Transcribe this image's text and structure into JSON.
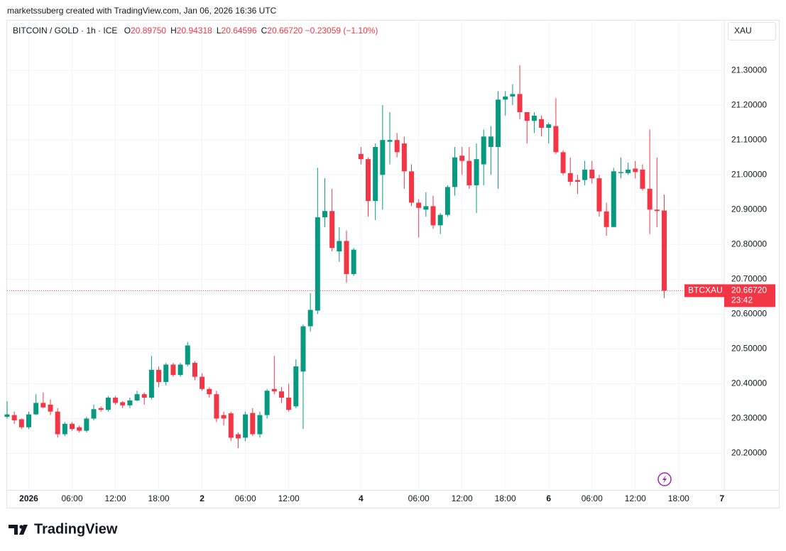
{
  "header": {
    "credit": "marketssuberg created with TradingView.com, Jan 06, 2026 16:36 UTC",
    "symbol": "BITCOIN / GOLD · 1h · ICE",
    "ohlc": [
      {
        "key": "O",
        "value": "20.89750"
      },
      {
        "key": "H",
        "value": "20.94318"
      },
      {
        "key": "L",
        "value": "20.64596"
      },
      {
        "key": "C",
        "value": "20.66720"
      }
    ],
    "change": "−0.23059 (−1.10%)",
    "currency": "XAU"
  },
  "chart_data": {
    "type": "candlestick",
    "categories": [
      null,
      null,
      null,
      "2026",
      null,
      null,
      null,
      null,
      null,
      "06:00",
      null,
      null,
      null,
      null,
      null,
      "12:00",
      null,
      null,
      null,
      null,
      null,
      "18:00",
      null,
      null,
      null,
      null,
      null,
      "2",
      null,
      null,
      null,
      null,
      null,
      "06:00",
      null,
      null,
      null,
      null,
      null,
      "12:00",
      null,
      null,
      null,
      null,
      null,
      null,
      null,
      null,
      null,
      "4",
      null,
      null,
      null,
      null,
      null,
      null,
      null,
      "06:00",
      null,
      null,
      null,
      null,
      null,
      "12:00",
      null,
      null,
      null,
      null,
      null,
      "18:00",
      null,
      null,
      null,
      null,
      null,
      "6",
      null,
      null,
      null,
      null,
      null,
      "06:00",
      null,
      null,
      null,
      null,
      null,
      "12:00",
      null,
      null,
      null,
      null,
      null,
      "18:00",
      null,
      null,
      null,
      null,
      null,
      "7"
    ],
    "open": [
      20.305,
      20.31,
      20.298,
      20.275,
      20.312,
      20.345,
      20.34,
      20.32,
      20.255,
      20.285,
      20.275,
      20.265,
      20.3,
      20.33,
      20.325,
      20.36,
      20.347,
      20.338,
      20.352,
      20.37,
      20.36,
      20.44,
      20.405,
      20.455,
      20.425,
      20.455,
      20.46,
      20.42,
      20.385,
      20.37,
      20.31,
      20.315,
      20.255,
      20.245,
      20.316,
      20.255,
      20.31,
      20.385,
      20.378,
      20.36,
      20.335,
      20.435,
      20.565,
      20.61,
      20.878,
      20.896,
      20.78,
      20.81,
      20.715,
      21.06,
      21.045,
      20.925,
      21.0,
      21.095,
      21.1,
      21.09,
      21.01,
      20.92,
      20.9,
      20.91,
      20.855,
      20.885,
      20.965,
      21.055,
      21.04,
      20.97,
      21.03,
      21.08,
      21.08,
      21.216,
      21.225,
      21.232,
      21.18,
      21.155,
      21.16,
      21.135,
      21.14,
      21.065,
      21.005,
      20.985,
      20.985,
      21.015,
      20.99,
      20.895,
      20.85,
      21.005,
      21.005,
      21.018,
      21.015,
      20.96,
      20.9,
      20.8975,
      null,
      null,
      null,
      null,
      null,
      null,
      null,
      null
    ],
    "high": [
      20.35,
      20.32,
      20.3,
      20.32,
      20.37,
      20.375,
      20.355,
      20.33,
      20.29,
      20.29,
      20.28,
      20.305,
      20.34,
      20.335,
      20.365,
      20.365,
      20.35,
      20.36,
      20.38,
      20.375,
      20.48,
      20.45,
      20.46,
      20.46,
      20.46,
      20.52,
      20.465,
      20.43,
      20.39,
      20.38,
      20.32,
      20.32,
      20.26,
      20.32,
      20.33,
      20.32,
      20.385,
      20.48,
      20.39,
      20.4,
      20.47,
      20.57,
      20.66,
      21.02,
      20.99,
      20.96,
      20.85,
      20.84,
      20.79,
      21.08,
      21.05,
      21.09,
      21.2,
      21.18,
      21.12,
      21.11,
      21.03,
      20.93,
      20.95,
      20.94,
      20.89,
      20.97,
      21.08,
      21.08,
      21.08,
      21.09,
      21.13,
      21.14,
      21.24,
      21.24,
      21.26,
      21.315,
      21.18,
      21.18,
      21.17,
      21.15,
      21.22,
      21.07,
      21.05,
      21.0,
      21.04,
      21.04,
      21.0,
      20.92,
      21.02,
      21.05,
      21.035,
      21.04,
      21.03,
      21.13,
      21.05,
      20.94318,
      null,
      null,
      null,
      null,
      null,
      null,
      null,
      null
    ],
    "low": [
      20.3,
      20.285,
      20.27,
      20.27,
      20.31,
      20.33,
      20.31,
      20.245,
      20.25,
      20.265,
      20.26,
      20.26,
      20.295,
      20.32,
      20.32,
      20.34,
      20.33,
      20.33,
      20.35,
      20.34,
      20.355,
      20.39,
      20.395,
      20.42,
      20.42,
      20.45,
      20.41,
      20.38,
      20.36,
      20.29,
      20.28,
      20.235,
      20.215,
      20.235,
      20.25,
      20.245,
      20.3,
      20.37,
      20.345,
      20.32,
      20.33,
      20.27,
      20.55,
      20.6,
      20.85,
      20.78,
      20.75,
      20.69,
      20.71,
      21.03,
      20.88,
      20.87,
      20.9,
      21.03,
      21.05,
      20.96,
      20.91,
      20.82,
      20.88,
      20.845,
      20.83,
      20.88,
      20.94,
      21.0,
      20.96,
      20.89,
      20.97,
      21.0,
      20.96,
      21.17,
      21.2,
      21.16,
      21.09,
      21.12,
      21.11,
      21.09,
      21.06,
      21.0,
      20.97,
      20.945,
      20.97,
      20.975,
      20.88,
      20.825,
      20.85,
      20.99,
      21.0,
      20.99,
      20.955,
      20.83,
      20.85,
      20.64596,
      null,
      null,
      null,
      null,
      null,
      null,
      null,
      null
    ],
    "close": [
      20.312,
      20.295,
      20.275,
      20.312,
      20.345,
      20.332,
      20.32,
      20.255,
      20.285,
      20.27,
      20.265,
      20.3,
      20.327,
      20.325,
      20.36,
      20.345,
      20.338,
      20.352,
      20.37,
      20.36,
      20.44,
      20.405,
      20.455,
      20.425,
      20.455,
      20.51,
      20.42,
      20.385,
      20.37,
      20.3,
      20.3,
      20.245,
      20.243,
      20.312,
      20.255,
      20.31,
      20.38,
      20.378,
      20.36,
      20.325,
      20.45,
      20.565,
      20.612,
      20.878,
      20.896,
      20.79,
      20.81,
      20.715,
      20.785,
      21.045,
      20.925,
      21.08,
      21.1,
      21.1,
      21.065,
      21.01,
      20.92,
      20.905,
      20.91,
      20.855,
      20.885,
      20.965,
      21.05,
      21.04,
      20.97,
      21.045,
      21.11,
      21.11,
      21.216,
      21.225,
      21.232,
      21.18,
      21.155,
      21.17,
      21.135,
      21.145,
      21.065,
      21.005,
      20.98,
      20.98,
      21.015,
      20.99,
      20.895,
      20.85,
      21.01,
      21.008,
      21.015,
      21.008,
      20.96,
      20.9,
      20.896,
      20.6672,
      null,
      null,
      null,
      null,
      null,
      null,
      null,
      null
    ],
    "up_color": "#089981",
    "down_color": "#f23645",
    "ylim": [
      20.095,
      21.445
    ],
    "yticks": [
      {
        "value": 20.2,
        "label": "20.20000"
      },
      {
        "value": 20.3,
        "label": "20.30000"
      },
      {
        "value": 20.4,
        "label": "20.40000"
      },
      {
        "value": 20.5,
        "label": "20.50000"
      },
      {
        "value": 20.6,
        "label": "20.60000"
      },
      {
        "value": 20.7,
        "label": "20.70000"
      },
      {
        "value": 20.8,
        "label": "20.80000"
      },
      {
        "value": 20.9,
        "label": "20.90000"
      },
      {
        "value": 21.0,
        "label": "21.00000"
      },
      {
        "value": 21.1,
        "label": "21.10000"
      },
      {
        "value": 21.2,
        "label": "21.20000"
      },
      {
        "value": 21.3,
        "label": "21.30000"
      }
    ],
    "grid": true,
    "symbol_label": "BTCXAU",
    "last_price": {
      "value": 20.6672,
      "label": "20.66720"
    },
    "countdown": "23:42"
  },
  "brand": "TradingView"
}
